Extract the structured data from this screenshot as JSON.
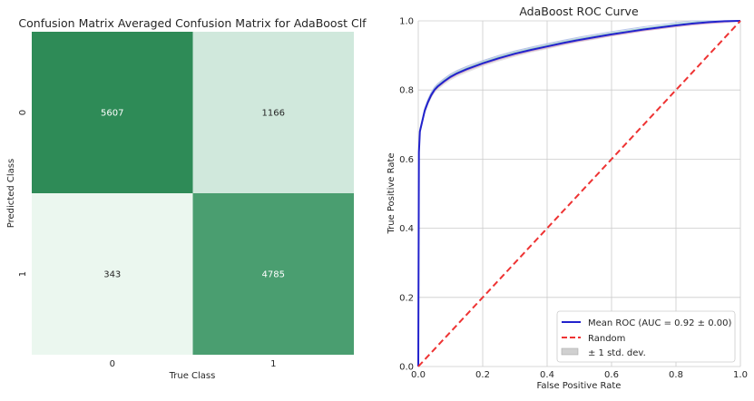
{
  "chart_data": [
    {
      "type": "heatmap",
      "title": "Confusion Matrix Averaged Confusion Matrix for AdaBoost Clf",
      "xlabel": "True Class",
      "ylabel": "Predicted Class",
      "x_categories": [
        "0",
        "1"
      ],
      "y_categories": [
        "0",
        "1"
      ],
      "values": [
        [
          5607,
          1166
        ],
        [
          343,
          4785
        ]
      ],
      "colors": [
        [
          "#2e8b57",
          "#d0e8dc"
        ],
        [
          "#ebf7ef",
          "#4a9e70"
        ]
      ],
      "text_colors": [
        [
          "#ffffff",
          "#262626"
        ],
        [
          "#262626",
          "#ffffff"
        ]
      ],
      "colorbar": false
    },
    {
      "type": "line",
      "title": "AdaBoost ROC Curve",
      "xlabel": "False Positive Rate",
      "ylabel": "True Positive Rate",
      "xlim": [
        0,
        1
      ],
      "ylim": [
        0,
        1
      ],
      "xticks": [
        "0.0",
        "0.2",
        "0.4",
        "0.6",
        "0.8",
        "1.0"
      ],
      "yticks": [
        "0.0",
        "0.2",
        "0.4",
        "0.6",
        "0.8",
        "1.0"
      ],
      "grid": true,
      "legend_position": "lower-right",
      "series": [
        {
          "name": "Mean ROC (AUC = 0.92 ± 0.00)",
          "color": "#2222cc",
          "style": "solid",
          "x": [
            0,
            0.002,
            0.005,
            0.01,
            0.015,
            0.02,
            0.03,
            0.04,
            0.05,
            0.06,
            0.08,
            0.1,
            0.12,
            0.15,
            0.2,
            0.25,
            0.3,
            0.35,
            0.4,
            0.45,
            0.5,
            0.55,
            0.6,
            0.65,
            0.7,
            0.75,
            0.8,
            0.85,
            0.9,
            0.95,
            1.0
          ],
          "y": [
            0,
            0.62,
            0.68,
            0.7,
            0.72,
            0.74,
            0.765,
            0.785,
            0.8,
            0.81,
            0.825,
            0.838,
            0.848,
            0.86,
            0.877,
            0.892,
            0.905,
            0.916,
            0.926,
            0.936,
            0.945,
            0.953,
            0.961,
            0.968,
            0.975,
            0.981,
            0.987,
            0.992,
            0.996,
            0.999,
            1.0
          ]
        },
        {
          "name": "Random",
          "color": "#ee3333",
          "style": "dashed",
          "x": [
            0,
            1
          ],
          "y": [
            0,
            1
          ]
        }
      ],
      "band": {
        "name": "± 1 std. dev.",
        "color": "#d0d0d0",
        "x": [
          0,
          0.002,
          0.005,
          0.01,
          0.015,
          0.02,
          0.03,
          0.04,
          0.05,
          0.06,
          0.08,
          0.1,
          0.12,
          0.15,
          0.2,
          0.25,
          0.3,
          0.35,
          0.4,
          0.45,
          0.5,
          0.55,
          0.6,
          0.65,
          0.7,
          0.75,
          0.8,
          0.85,
          0.9,
          0.95,
          1.0
        ],
        "lower": [
          0,
          0.61,
          0.67,
          0.69,
          0.71,
          0.73,
          0.755,
          0.775,
          0.79,
          0.8,
          0.815,
          0.828,
          0.838,
          0.85,
          0.868,
          0.883,
          0.896,
          0.908,
          0.918,
          0.928,
          0.938,
          0.946,
          0.955,
          0.962,
          0.97,
          0.976,
          0.983,
          0.989,
          0.994,
          0.998,
          1.0
        ],
        "upper": [
          0,
          0.63,
          0.69,
          0.71,
          0.73,
          0.75,
          0.775,
          0.795,
          0.81,
          0.82,
          0.835,
          0.848,
          0.858,
          0.87,
          0.886,
          0.901,
          0.914,
          0.924,
          0.934,
          0.944,
          0.952,
          0.96,
          0.967,
          0.974,
          0.98,
          0.986,
          0.991,
          0.995,
          0.998,
          1.0,
          1.0
        ]
      },
      "fold_colors": [
        "#8fd0c8",
        "#d8a0c0",
        "#a8b8e8"
      ]
    }
  ]
}
